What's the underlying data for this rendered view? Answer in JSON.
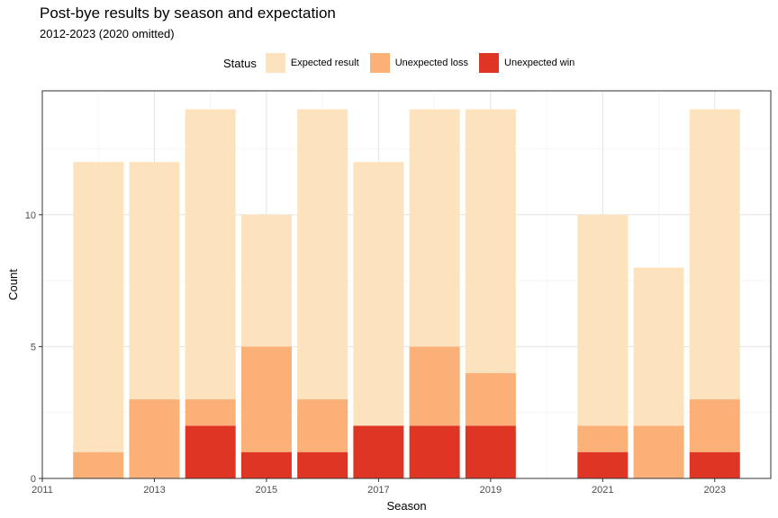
{
  "chart_data": {
    "type": "bar",
    "stacked": true,
    "title": "Post-bye results by season and expectation",
    "subtitle": "2012-2023 (2020 omitted)",
    "xlabel": "Season",
    "ylabel": "Count",
    "legend_title": "Status",
    "legend_position": "top",
    "xlim": [
      2011,
      2024
    ],
    "ylim": [
      0,
      14.7
    ],
    "x_ticks": [
      2011,
      2013,
      2015,
      2017,
      2019,
      2021,
      2023
    ],
    "y_ticks": [
      0,
      5,
      10
    ],
    "grid": true,
    "x": [
      2012,
      2013,
      2014,
      2015,
      2016,
      2017,
      2018,
      2019,
      2021,
      2022,
      2023
    ],
    "series": [
      {
        "name": "Unexpected win",
        "color": "#de3524",
        "values": [
          0,
          0,
          2,
          1,
          1,
          2,
          2,
          2,
          1,
          0,
          1
        ]
      },
      {
        "name": "Unexpected loss",
        "color": "#fbb077",
        "values": [
          1,
          3,
          1,
          4,
          2,
          0,
          3,
          2,
          1,
          2,
          2
        ]
      },
      {
        "name": "Expected result",
        "color": "#fce3bd",
        "values": [
          11,
          9,
          11,
          5,
          11,
          10,
          9,
          10,
          8,
          6,
          11
        ]
      }
    ],
    "legend_order": [
      "Expected result",
      "Unexpected loss",
      "Unexpected win"
    ]
  }
}
